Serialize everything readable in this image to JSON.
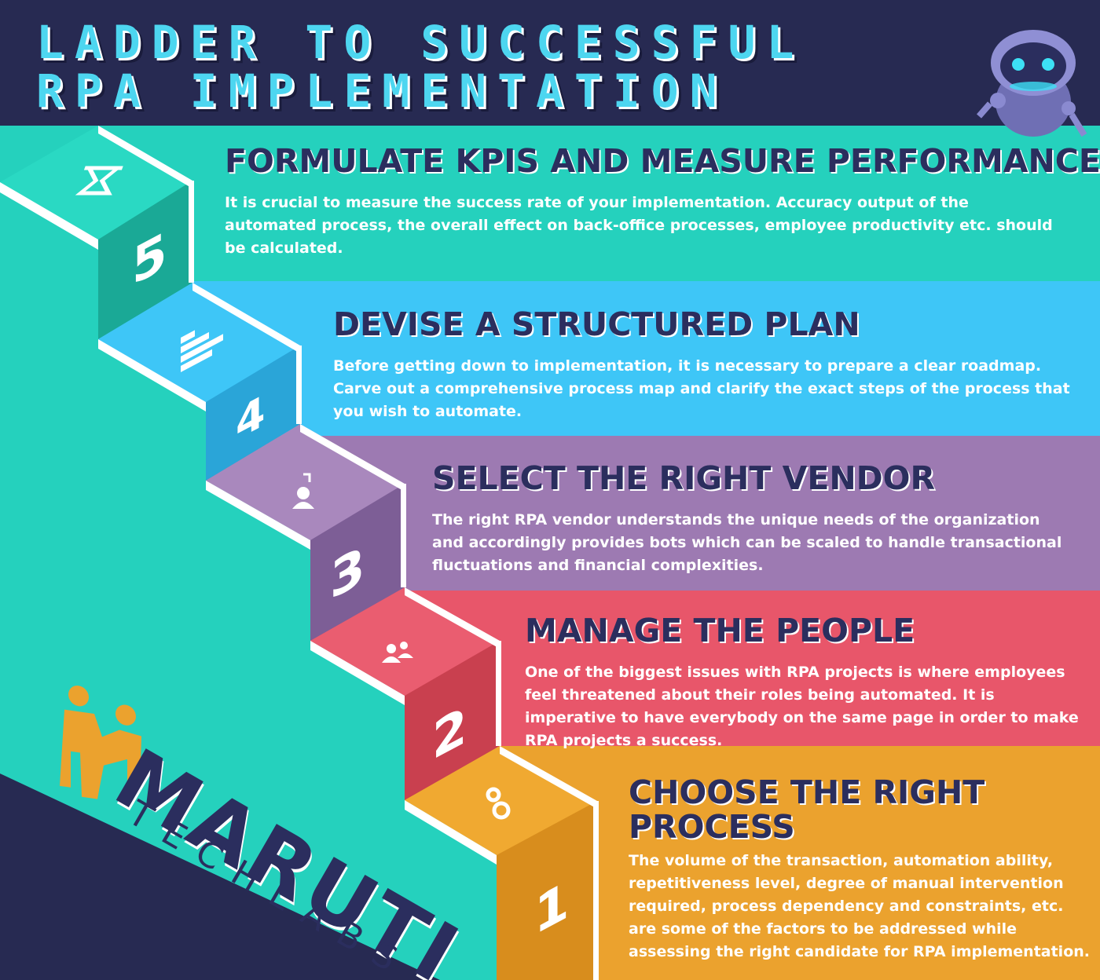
{
  "title": {
    "line1": "LADDER TO SUCCESSFUL",
    "line2": "RPA IMPLEMENTATION"
  },
  "steps": [
    {
      "number": "5",
      "heading": "FORMULATE KPIS AND MEASURE PERFORMANCE",
      "description": "It is crucial to measure the success rate of your implementation. Accuracy output of the automated process, the overall effect on back-office processes, employee productivity etc. should be calculated.",
      "color": "#25d1bd",
      "icon": "hourglass-icon"
    },
    {
      "number": "4",
      "heading": "DEVISE A STRUCTURED PLAN",
      "description": "Before getting down to implementation, it is necessary to prepare a clear roadmap. Carve out a comprehensive process map and clarify the exact steps of the process that you wish to automate.",
      "color": "#3ec6f7",
      "icon": "roadmap-icon"
    },
    {
      "number": "3",
      "heading": "SELECT THE RIGHT VENDOR",
      "description": "The right RPA vendor understands the unique needs of the organization and accordingly provides bots which can be scaled to handle transactional fluctuations and financial complexities.",
      "color": "#9d7ab2",
      "icon": "vendor-icon"
    },
    {
      "number": "2",
      "heading": "MANAGE THE PEOPLE",
      "description": "One of the biggest issues with RPA projects is where employees feel threatened about their roles being automated. It is imperative to have everybody on the same page in order to make RPA projects a success.",
      "color": "#e8566a",
      "icon": "people-icon"
    },
    {
      "number": "1",
      "heading_line1": "CHOOSE THE RIGHT",
      "heading_line2": "PROCESS",
      "description": "The volume of the transaction, automation ability, repetitiveness level, degree of manual intervention required, process dependency and constraints, etc. are some of the factors to be addressed while assessing the right candidate for RPA implementation.",
      "color": "#eba22e",
      "icon": "gears-icon"
    }
  ],
  "logo": {
    "name": "MARUTI",
    "sub": "TECHLABS",
    "mark_color": "#eba22e"
  },
  "mascot": "robot-icon"
}
